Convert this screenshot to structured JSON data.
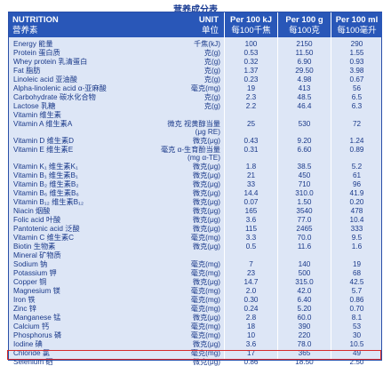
{
  "title": "营养成分表",
  "header": {
    "name_en": "NUTRITION",
    "name_cn": "营养素",
    "unit_en": "UNIT",
    "unit_cn": "单位",
    "c1_en": "Per 100 kJ",
    "c1_cn": "每100千焦",
    "c2_en": "Per 100 g",
    "c2_cn": "每100克",
    "c3_en": "Per 100 ml",
    "c3_cn": "每100毫升"
  },
  "rows": [
    {
      "name": "Energy 能量",
      "unit": "千焦(kJ)",
      "v1": "100",
      "v2": "2150",
      "v3": "290"
    },
    {
      "name": "Protein 蛋白质",
      "unit": "克(g)",
      "v1": "0.53",
      "v2": "11.50",
      "v3": "1.55"
    },
    {
      "name": "Whey protein 乳清蛋白",
      "unit": "克(g)",
      "v1": "0.32",
      "v2": "6.90",
      "v3": "0.93"
    },
    {
      "name": "Fat 脂肪",
      "unit": "克(g)",
      "v1": "1.37",
      "v2": "29.50",
      "v3": "3.98"
    },
    {
      "name": "Linoleic acid 亚油酸",
      "unit": "克(g)",
      "v1": "0.23",
      "v2": "4.98",
      "v3": "0.67"
    },
    {
      "name": "Alpha-linolenic acid α-亚麻酸",
      "unit": "毫克(mg)",
      "v1": "19",
      "v2": "413",
      "v3": "56"
    },
    {
      "name": "Carbohydrate 碳水化合物",
      "unit": "克(g)",
      "v1": "2.3",
      "v2": "48.5",
      "v3": "6.5"
    },
    {
      "name": "Lactose 乳糖",
      "unit": "克(g)",
      "v1": "2.2",
      "v2": "46.4",
      "v3": "6.3"
    },
    {
      "name": "Vitamin 维生素",
      "unit": "",
      "v1": "",
      "v2": "",
      "v3": ""
    },
    {
      "name": "Vitamin A 维生素A",
      "unit": "微克 视黄醇当量",
      "unit2": "(μg RE)",
      "v1": "25",
      "v2": "530",
      "v3": "72"
    },
    {
      "name": "Vitamin D 维生素D",
      "unit": "微克(μg)",
      "v1": "0.43",
      "v2": "9.20",
      "v3": "1.24"
    },
    {
      "name": "Vitamin E 维生素E",
      "unit": "毫克 α-生育酚当量",
      "unit2": "(mg α-TE)",
      "v1": "0.31",
      "v2": "6.60",
      "v3": "0.89"
    },
    {
      "name": "Vitamin K₁ 维生素K₁",
      "unit": "微克(μg)",
      "v1": "1.8",
      "v2": "38.5",
      "v3": "5.2"
    },
    {
      "name": "Vitamin B₁ 维生素B₁",
      "unit": "微克(μg)",
      "v1": "21",
      "v2": "450",
      "v3": "61"
    },
    {
      "name": "Vitamin B₂ 维生素B₂",
      "unit": "微克(μg)",
      "v1": "33",
      "v2": "710",
      "v3": "96"
    },
    {
      "name": "Vitamin B₆ 维生素B₆",
      "unit": "微克(μg)",
      "v1": "14.4",
      "v2": "310.0",
      "v3": "41.9"
    },
    {
      "name": "Vitamin B₁₂ 维生素B₁₂",
      "unit": "微克(μg)",
      "v1": "0.07",
      "v2": "1.50",
      "v3": "0.20"
    },
    {
      "name": "Niacin 烟酸",
      "unit": "微克(μg)",
      "v1": "165",
      "v2": "3540",
      "v3": "478"
    },
    {
      "name": "Folic acid 叶酸",
      "unit": "微克(μg)",
      "v1": "3.6",
      "v2": "77.0",
      "v3": "10.4"
    },
    {
      "name": "Pantotenic acid 泛酸",
      "unit": "微克(μg)",
      "v1": "115",
      "v2": "2465",
      "v3": "333"
    },
    {
      "name": "Vitamin C 维生素C",
      "unit": "毫克(mg)",
      "v1": "3.3",
      "v2": "70.0",
      "v3": "9.5"
    },
    {
      "name": "Biotin 生物素",
      "unit": "微克(μg)",
      "v1": "0.5",
      "v2": "11.6",
      "v3": "1.6"
    },
    {
      "name": "Mineral 矿物质",
      "unit": "",
      "v1": "",
      "v2": "",
      "v3": ""
    },
    {
      "name": "Sodium 钠",
      "unit": "毫克(mg)",
      "v1": "7",
      "v2": "140",
      "v3": "19"
    },
    {
      "name": "Potassium 钾",
      "unit": "毫克(mg)",
      "v1": "23",
      "v2": "500",
      "v3": "68"
    },
    {
      "name": "Copper 铜",
      "unit": "微克(μg)",
      "v1": "14.7",
      "v2": "315.0",
      "v3": "42.5"
    },
    {
      "name": "Magnesium 镁",
      "unit": "毫克(mg)",
      "v1": "2.0",
      "v2": "42.0",
      "v3": "5.7"
    },
    {
      "name": "Iron 铁",
      "unit": "毫克(mg)",
      "v1": "0.30",
      "v2": "6.40",
      "v3": "0.86"
    },
    {
      "name": "Zinc 锌",
      "unit": "毫克(mg)",
      "v1": "0.24",
      "v2": "5.20",
      "v3": "0.70"
    },
    {
      "name": "Manganese 锰",
      "unit": "微克(μg)",
      "v1": "2.8",
      "v2": "60.0",
      "v3": "8.1"
    },
    {
      "name": "Calcium 钙",
      "unit": "毫克(mg)",
      "v1": "18",
      "v2": "390",
      "v3": "53"
    },
    {
      "name": "Phosphorus 磷",
      "unit": "毫克(mg)",
      "v1": "10",
      "v2": "220",
      "v3": "30"
    },
    {
      "name": "Iodine 碘",
      "unit": "微克(μg)",
      "v1": "3.6",
      "v2": "78.0",
      "v3": "10.5"
    },
    {
      "name": "Chloride 氯",
      "unit": "毫克(mg)",
      "v1": "17",
      "v2": "365",
      "v3": "49"
    },
    {
      "name": "Selenium 硒",
      "unit": "微克(μg)",
      "v1": "0.86",
      "v2": "18.50",
      "v3": "2.50"
    }
  ]
}
